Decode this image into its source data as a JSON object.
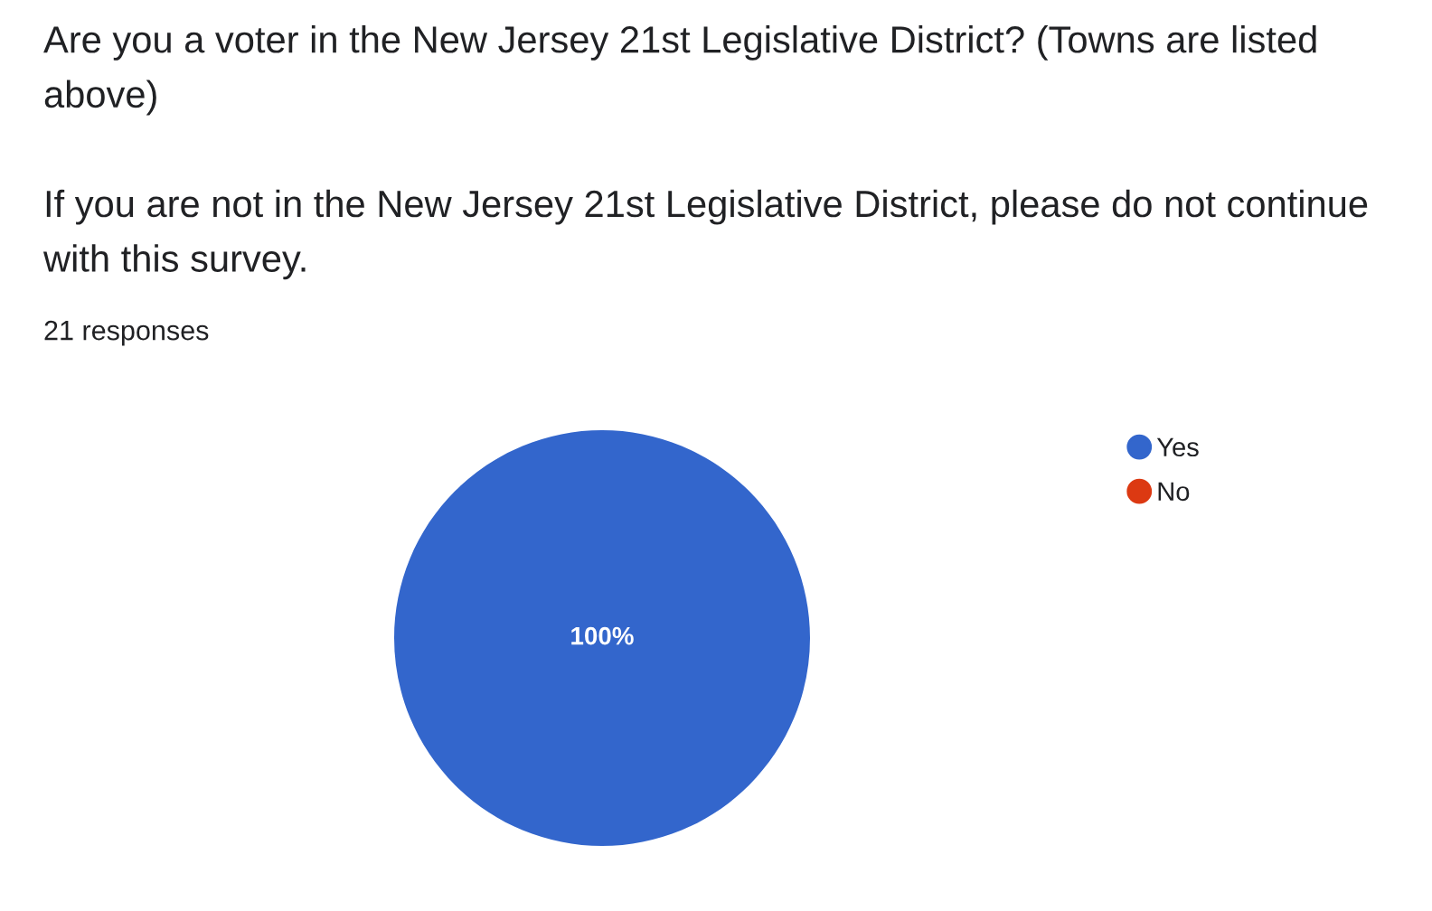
{
  "chart_data": {
    "type": "pie",
    "title": "Are you a voter in the New Jersey 21st Legislative District? (Towns are listed above)\n\nIf you are not in the New Jersey 21st Legislative District, please do not continue with this survey.",
    "subtitle": "21 responses",
    "categories": [
      "Yes",
      "No"
    ],
    "values": [
      100,
      0
    ],
    "colors": [
      "#3366cc",
      "#dc3912"
    ],
    "value_labels": [
      "100%",
      null
    ],
    "legend": "top right"
  }
}
